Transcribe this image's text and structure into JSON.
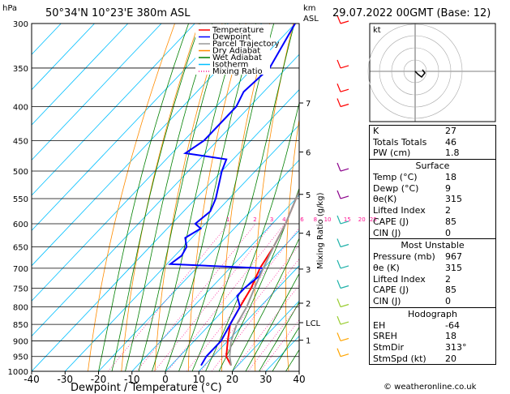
{
  "header": {
    "location": "50°34'N  10°23'E  380m  ASL",
    "datetime": "29.07.2022  00GMT  (Base: 12)",
    "hpa_unit": "hPa",
    "km_unit": "km",
    "asl_unit": "ASL"
  },
  "chart_data": {
    "type": "line",
    "xlabel": "Dewpoint / Temperature (°C)",
    "ylabel": "Mixing Ratio (g/kg)",
    "xlim": [
      -40,
      40
    ],
    "ylim": [
      1000,
      300
    ],
    "x_ticks": [
      "-40",
      "-30",
      "-20",
      "-10",
      "0",
      "10",
      "20",
      "30",
      "40"
    ],
    "pressure_levels": [
      300,
      350,
      400,
      450,
      500,
      550,
      600,
      650,
      700,
      750,
      800,
      850,
      900,
      950,
      1000
    ],
    "altitude_labels": [
      {
        "km": "7",
        "p": 395
      },
      {
        "km": "6",
        "p": 468
      },
      {
        "km": "5",
        "p": 542
      },
      {
        "km": "4",
        "p": 620
      },
      {
        "km": "3",
        "p": 702
      },
      {
        "km": "2",
        "p": 790
      },
      {
        "km": "LCL",
        "p": 845
      },
      {
        "km": "1",
        "p": 898
      }
    ],
    "mixing_ratio_labels": [
      "1",
      "2",
      "3",
      "4",
      "6",
      "8",
      "10",
      "15",
      "20",
      "25"
    ],
    "legend": [
      {
        "name": "Temperature",
        "color": "#ff0000"
      },
      {
        "name": "Dewpoint",
        "color": "#0000ff"
      },
      {
        "name": "Parcel Trajectory",
        "color": "#999999"
      },
      {
        "name": "Dry Adiabat",
        "color": "#ff8c00"
      },
      {
        "name": "Wet Adiabat",
        "color": "#008000"
      },
      {
        "name": "Isotherm",
        "color": "#00bfff"
      },
      {
        "name": "Mixing Ratio",
        "color": "#ff1493"
      }
    ],
    "series": [
      {
        "name": "Temperature",
        "points": [
          [
            980,
            18
          ],
          [
            950,
            14
          ],
          [
            900,
            10
          ],
          [
            850,
            6
          ],
          [
            800,
            4
          ],
          [
            750,
            2
          ],
          [
            700,
            -1
          ],
          [
            650,
            -3
          ],
          [
            600,
            -6
          ],
          [
            550,
            -10
          ],
          [
            500,
            -14
          ],
          [
            450,
            -19
          ],
          [
            400,
            -25
          ],
          [
            380,
            -28
          ],
          [
            350,
            -31
          ],
          [
            300,
            -40
          ]
        ]
      },
      {
        "name": "Dewpoint",
        "points": [
          [
            980,
            9
          ],
          [
            950,
            8
          ],
          [
            900,
            8
          ],
          [
            850,
            6
          ],
          [
            800,
            4
          ],
          [
            770,
            0
          ],
          [
            750,
            0
          ],
          [
            720,
            1
          ],
          [
            700,
            0
          ],
          [
            690,
            -29
          ],
          [
            670,
            -28
          ],
          [
            650,
            -29
          ],
          [
            630,
            -32
          ],
          [
            610,
            -30
          ],
          [
            600,
            -33
          ],
          [
            575,
            -32
          ],
          [
            550,
            -34
          ],
          [
            500,
            -40
          ],
          [
            480,
            -42
          ],
          [
            470,
            -56
          ],
          [
            450,
            -54
          ],
          [
            400,
            -54
          ],
          [
            380,
            -56
          ],
          [
            350,
            -55
          ],
          [
            300,
            -60
          ]
        ]
      },
      {
        "name": "Parcel Trajectory",
        "points": [
          [
            980,
            18
          ],
          [
            950,
            15
          ],
          [
            900,
            11
          ],
          [
            850,
            8
          ],
          [
            800,
            6
          ],
          [
            750,
            3
          ],
          [
            700,
            0
          ],
          [
            650,
            -3
          ],
          [
            600,
            -6
          ],
          [
            550,
            -10
          ],
          [
            500,
            -14
          ],
          [
            450,
            -19
          ],
          [
            400,
            -25
          ],
          [
            350,
            -32
          ],
          [
            300,
            -42
          ]
        ]
      }
    ],
    "winds_color": [
      "#ff0000",
      "#ff0000",
      "#8b008b",
      "#20b2aa",
      "#20b2aa",
      "#9acd32",
      "#ffa500"
    ]
  },
  "hodograph": {
    "unit": "kt",
    "color": "#000000"
  },
  "indices": {
    "top": [
      {
        "label": "K",
        "value": "27"
      },
      {
        "label": "Totals Totals",
        "value": "46"
      },
      {
        "label": "PW (cm)",
        "value": "1.8"
      }
    ],
    "surface": {
      "title": "Surface",
      "rows": [
        {
          "label": "Temp (°C)",
          "value": "18"
        },
        {
          "label": "Dewp (°C)",
          "value": "9"
        },
        {
          "label": "θe(K)",
          "value": "315"
        },
        {
          "label": "Lifted Index",
          "value": "2"
        },
        {
          "label": "CAPE (J)",
          "value": "85"
        },
        {
          "label": "CIN (J)",
          "value": "0"
        }
      ]
    },
    "unstable": {
      "title": "Most Unstable",
      "rows": [
        {
          "label": "Pressure (mb)",
          "value": "967"
        },
        {
          "label": "θe (K)",
          "value": "315"
        },
        {
          "label": "Lifted Index",
          "value": "2"
        },
        {
          "label": "CAPE (J)",
          "value": "85"
        },
        {
          "label": "CIN (J)",
          "value": "0"
        }
      ]
    },
    "hodo": {
      "title": "Hodograph",
      "rows": [
        {
          "label": "EH",
          "value": "-64"
        },
        {
          "label": "SREH",
          "value": "18"
        },
        {
          "label": "StmDir",
          "value": "313°"
        },
        {
          "label": "StmSpd (kt)",
          "value": "20"
        }
      ]
    }
  },
  "footer": {
    "copyright": "© weatheronline.co.uk"
  }
}
